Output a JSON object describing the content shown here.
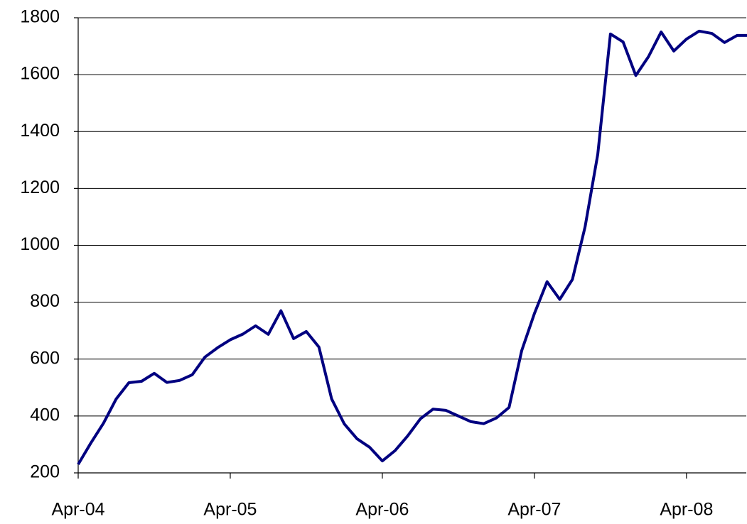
{
  "chart_data": {
    "type": "line",
    "categories": [
      "Apr-04",
      null,
      null,
      null,
      null,
      null,
      null,
      null,
      null,
      null,
      null,
      null,
      "Apr-05",
      null,
      null,
      null,
      null,
      null,
      null,
      null,
      null,
      null,
      null,
      null,
      "Apr-06",
      null,
      null,
      null,
      null,
      null,
      null,
      null,
      null,
      null,
      null,
      null,
      "Apr-07",
      null,
      null,
      null,
      null,
      null,
      null,
      null,
      null,
      null,
      null,
      null,
      "Apr-08",
      null,
      null,
      null,
      null,
      null
    ],
    "series": [
      {
        "color": "#000080",
        "values": [
          230,
          305,
          375,
          460,
          517,
          522,
          550,
          518,
          525,
          545,
          607,
          640,
          668,
          688,
          717,
          687,
          770,
          672,
          697,
          642,
          460,
          372,
          320,
          290,
          242,
          278,
          330,
          390,
          424,
          420,
          400,
          380,
          373,
          393,
          430,
          630,
          760,
          872,
          810,
          880,
          1065,
          1320,
          1743,
          1715,
          1597,
          1663,
          1750,
          1683,
          1725,
          1753,
          1745,
          1713,
          1738,
          1738
        ]
      }
    ],
    "ylim": [
      200,
      1800
    ],
    "yticks": [
      200,
      400,
      600,
      800,
      1000,
      1200,
      1400,
      1600,
      1800
    ],
    "grid": true
  }
}
